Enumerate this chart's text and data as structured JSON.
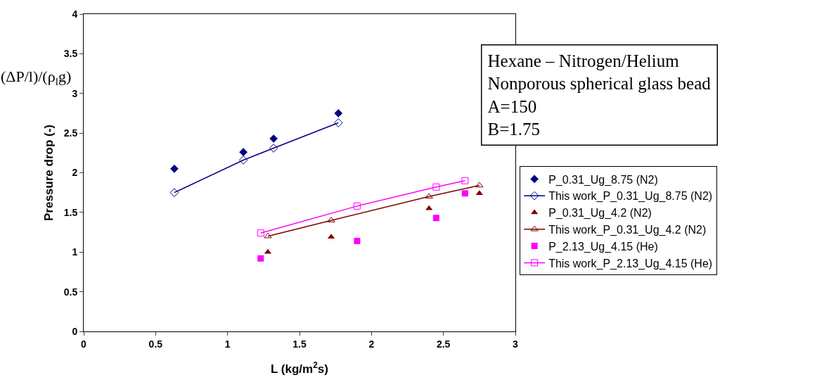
{
  "chart_data": {
    "type": "scatter",
    "xlabel": "L (kg/m$^{2}$s)",
    "ylabel": "Pressure drop (-)",
    "annotations": [
      "(ΔP/l)/(ρ$_{l}$g)",
      "Hexane – Nitrogen/Helium",
      "Nonporous spherical glass bead",
      "A=150",
      "B=1.75"
    ],
    "xlim": [
      0,
      3
    ],
    "xticks": [
      0,
      0.5,
      1,
      1.5,
      2,
      2.5,
      3
    ],
    "ylim": [
      0,
      4
    ],
    "yticks": [
      0,
      0.5,
      1,
      1.5,
      2,
      2.5,
      3,
      3.5,
      4
    ],
    "grid": false,
    "legend": "right",
    "series": [
      {
        "name": "P_0.31_Ug_8.75 (N2)",
        "type": "scatter",
        "marker": "diamond",
        "color": "#000080",
        "x": [
          0.63,
          1.11,
          1.32,
          1.77
        ],
        "values": [
          2.05,
          2.26,
          2.43,
          2.75
        ]
      },
      {
        "name": "This work_P_0.31_Ug_8.75 (N2)",
        "type": "line",
        "marker": "diamond",
        "color": "#000080",
        "x": [
          0.63,
          1.11,
          1.32,
          1.77
        ],
        "values": [
          1.75,
          2.16,
          2.31,
          2.63
        ]
      },
      {
        "name": "P_0.31_Ug_4.2 (N2)",
        "type": "scatter",
        "marker": "triangle",
        "color": "#800000",
        "x": [
          1.28,
          1.72,
          2.4,
          2.75
        ],
        "values": [
          1.0,
          1.19,
          1.55,
          1.74
        ]
      },
      {
        "name": "This work_P_0.31_Ug_4.2 (N2)",
        "type": "line",
        "marker": "triangle",
        "color": "#800000",
        "x": [
          1.28,
          1.72,
          2.4,
          2.75
        ],
        "values": [
          1.2,
          1.4,
          1.7,
          1.84
        ]
      },
      {
        "name": "P_2.13_Ug_4.15 (He)",
        "type": "scatter",
        "marker": "square",
        "color": "#ff00ff",
        "x": [
          1.23,
          1.9,
          2.45,
          2.65
        ],
        "values": [
          0.92,
          1.14,
          1.43,
          1.74
        ]
      },
      {
        "name": "This work_P_2.13_Ug_4.15 (He)",
        "type": "line",
        "marker": "square",
        "color": "#ff00ff",
        "x": [
          1.23,
          1.9,
          2.45,
          2.65
        ],
        "values": [
          1.24,
          1.58,
          1.82,
          1.9
        ]
      }
    ]
  }
}
